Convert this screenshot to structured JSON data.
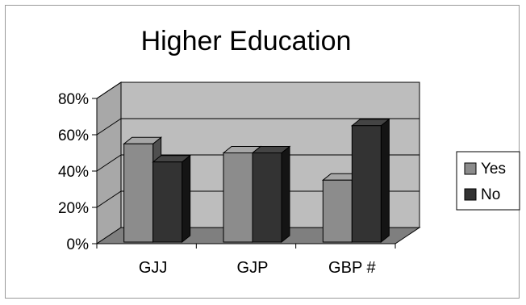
{
  "chart_data": {
    "type": "bar",
    "title": "Higher Education",
    "categories": [
      "GJJ",
      "GJP",
      "GBP #"
    ],
    "series": [
      {
        "name": "Yes",
        "values": [
          55,
          50,
          35
        ]
      },
      {
        "name": "No",
        "values": [
          45,
          50,
          65
        ]
      }
    ],
    "ylim": [
      0,
      80
    ],
    "yticks": [
      "0%",
      "20%",
      "40%",
      "60%",
      "80%"
    ],
    "xlabel": "",
    "ylabel": "",
    "grid": true,
    "legend": "right",
    "style": "3d-clustered-column",
    "colors": {
      "yes_front": "#8c8c8c",
      "yes_top": "#a6a6a6",
      "yes_side": "#4f4f4f",
      "no_front": "#333333",
      "no_top": "#444444",
      "no_side": "#141414",
      "back_wall": "#bdbdbd",
      "side_wall": "#a8a8a8",
      "floor": "#7f7f7f",
      "edge": "#000000"
    }
  }
}
